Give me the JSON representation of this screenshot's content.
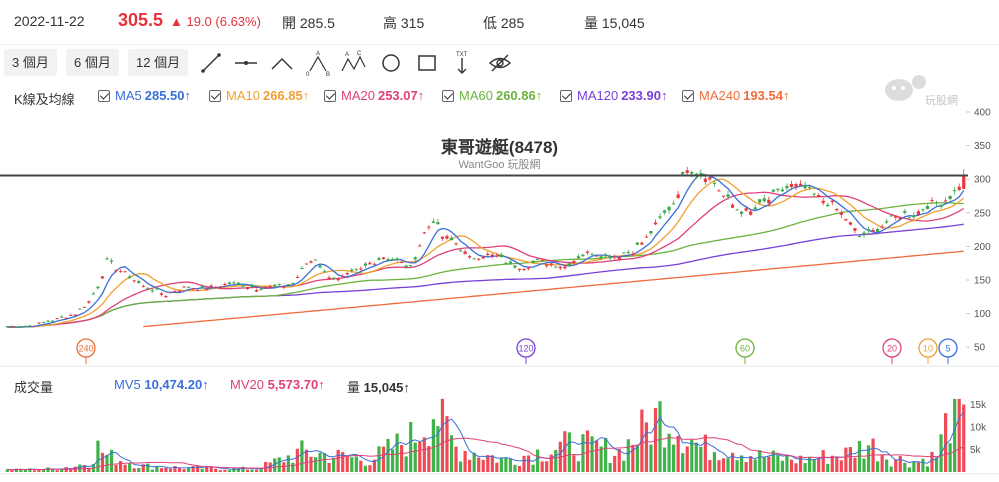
{
  "quote": {
    "date": "2022-11-22",
    "price": "305.5",
    "change": "▲ 19.0 (6.63%)",
    "open_label": "開",
    "open": "285.5",
    "high_label": "高",
    "high": "315",
    "low_label": "低",
    "low": "285",
    "volume_label": "量",
    "volume": "15,045"
  },
  "toolbar": {
    "periods": [
      "3 個月",
      "6 個月",
      "12 個月"
    ],
    "tools": [
      "trendline-icon",
      "horizontal-line-icon",
      "angle-line-icon",
      "abc-pattern-icon",
      "abcd-pattern-icon",
      "circle-icon",
      "rectangle-icon",
      "text-arrow-icon",
      "hide-icon"
    ]
  },
  "ma_legend": {
    "label": "K線及均線",
    "items": [
      {
        "name": "MA5",
        "value": "285.50↑",
        "color": "#3a6fd8"
      },
      {
        "name": "MA10",
        "value": "266.85↑",
        "color": "#f0a030"
      },
      {
        "name": "MA20",
        "value": "253.07↑",
        "color": "#e0407a"
      },
      {
        "name": "MA60",
        "value": "260.86↑",
        "color": "#6cb33e"
      },
      {
        "name": "MA120",
        "value": "233.90↑",
        "color": "#7a3fd6"
      },
      {
        "name": "MA240",
        "value": "193.54↑",
        "color": "#f06a3a"
      }
    ]
  },
  "vol_legend": {
    "label": "成交量",
    "items": [
      {
        "name": "MV5",
        "value": "10,474.20↑",
        "color": "#3a6fd8"
      },
      {
        "name": "MV20",
        "value": "5,573.70↑",
        "color": "#e0407a"
      },
      {
        "name": "量",
        "value": "15,045↑",
        "color": "#333333"
      }
    ]
  },
  "watermark_text": "玩股網",
  "chart_data": {
    "type": "candlestick",
    "title": "東哥遊艇(8478)",
    "subtitle": "WantGoo 玩股網",
    "price_axis": {
      "ticks": [
        50,
        100,
        150,
        200,
        250,
        300,
        350,
        400
      ],
      "ylim": [
        25,
        400
      ]
    },
    "volume_axis": {
      "ticks": [
        "5k",
        "10k",
        "15k"
      ],
      "tick_values": [
        5000,
        10000,
        15000
      ],
      "ylim": [
        0,
        16500
      ]
    },
    "reference_line": 305.5,
    "ma_period_markers": [
      "240",
      "120",
      "60",
      "20",
      "10",
      "5"
    ],
    "close_path": [
      [
        0,
        80
      ],
      [
        5,
        82
      ],
      [
        10,
        90
      ],
      [
        15,
        100
      ],
      [
        18,
        118
      ],
      [
        20,
        140
      ],
      [
        22,
        178
      ],
      [
        24,
        168
      ],
      [
        27,
        155
      ],
      [
        30,
        140
      ],
      [
        33,
        133
      ],
      [
        35,
        128
      ],
      [
        37,
        135
      ],
      [
        40,
        140
      ],
      [
        43,
        137
      ],
      [
        46,
        140
      ],
      [
        49,
        145
      ],
      [
        52,
        143
      ],
      [
        55,
        138
      ],
      [
        58,
        140
      ],
      [
        60,
        140
      ],
      [
        63,
        145
      ],
      [
        66,
        175
      ],
      [
        68,
        182
      ],
      [
        70,
        160
      ],
      [
        73,
        150
      ],
      [
        76,
        160
      ],
      [
        78,
        165
      ],
      [
        80,
        175
      ],
      [
        83,
        185
      ],
      [
        86,
        178
      ],
      [
        89,
        168
      ],
      [
        92,
        220
      ],
      [
        94,
        240
      ],
      [
        96,
        215
      ],
      [
        99,
        205
      ],
      [
        102,
        182
      ],
      [
        105,
        188
      ],
      [
        108,
        185
      ],
      [
        111,
        172
      ],
      [
        114,
        170
      ],
      [
        117,
        178
      ],
      [
        120,
        175
      ],
      [
        123,
        170
      ],
      [
        126,
        185
      ],
      [
        129,
        192
      ],
      [
        132,
        185
      ],
      [
        135,
        188
      ],
      [
        138,
        194
      ],
      [
        141,
        212
      ],
      [
        144,
        240
      ],
      [
        147,
        265
      ],
      [
        150,
        320
      ],
      [
        152,
        310
      ],
      [
        154,
        308
      ],
      [
        156,
        295
      ],
      [
        158,
        275
      ],
      [
        161,
        255
      ],
      [
        164,
        250
      ],
      [
        167,
        265
      ],
      [
        170,
        280
      ],
      [
        173,
        290
      ],
      [
        176,
        286
      ],
      [
        179,
        272
      ],
      [
        182,
        262
      ],
      [
        185,
        242
      ],
      [
        188,
        215
      ],
      [
        191,
        222
      ],
      [
        194,
        236
      ],
      [
        197,
        248
      ],
      [
        200,
        247
      ],
      [
        203,
        262
      ],
      [
        206,
        265
      ],
      [
        209,
        280
      ],
      [
        211,
        305.5
      ]
    ],
    "volume_profile": [
      [
        0,
        500
      ],
      [
        10,
        800
      ],
      [
        15,
        1500
      ],
      [
        18,
        2500
      ],
      [
        20,
        6000
      ],
      [
        22,
        4000
      ],
      [
        30,
        1500
      ],
      [
        40,
        1000
      ],
      [
        55,
        800
      ],
      [
        65,
        5000
      ],
      [
        80,
        3000
      ],
      [
        90,
        9000
      ],
      [
        94,
        16000
      ],
      [
        99,
        6000
      ],
      [
        110,
        3000
      ],
      [
        125,
        7000
      ],
      [
        135,
        5000
      ],
      [
        141,
        11000
      ],
      [
        145,
        15000
      ],
      [
        150,
        9000
      ],
      [
        153,
        6000
      ],
      [
        160,
        6000
      ],
      [
        165,
        4000
      ],
      [
        175,
        3000
      ],
      [
        185,
        4500
      ],
      [
        190,
        7000
      ],
      [
        195,
        3500
      ],
      [
        200,
        2500
      ],
      [
        205,
        4000
      ],
      [
        208,
        14500
      ],
      [
        211,
        15045
      ]
    ]
  }
}
